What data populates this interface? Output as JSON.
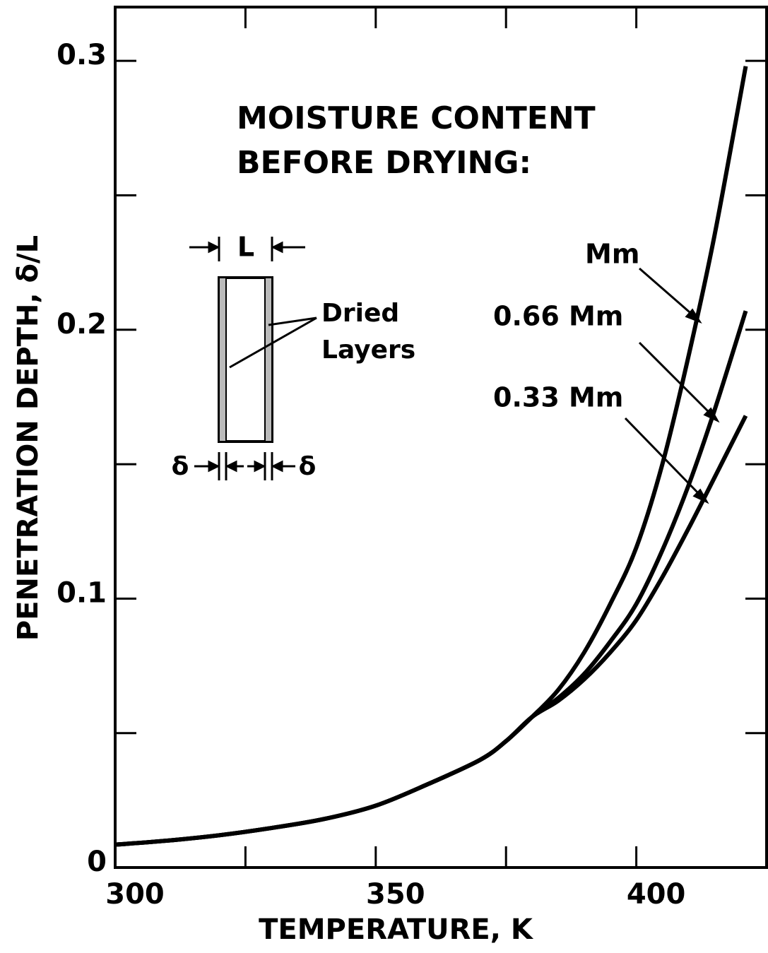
{
  "chart_data": {
    "type": "line",
    "xlabel": "TEMPERATURE, K",
    "ylabel": "PENETRATION DEPTH, δ/L",
    "annotations": {
      "heading": [
        "MOISTURE CONTENT",
        "BEFORE DRYING:"
      ],
      "inset": {
        "width_label": "L",
        "layer_label": [
          "Dried",
          "Layers"
        ],
        "thickness_label": "δ"
      }
    },
    "x": [
      300,
      310,
      320,
      330,
      340,
      350,
      360,
      370,
      375,
      380,
      385,
      390,
      395,
      400,
      405,
      410,
      415,
      421
    ],
    "series": [
      {
        "name": "Mm",
        "color": "#000000",
        "values": [
          0.0085,
          0.01,
          0.012,
          0.0147,
          0.018,
          0.023,
          0.031,
          0.04,
          0.047,
          0.056,
          0.066,
          0.08,
          0.098,
          0.119,
          0.15,
          0.19,
          0.235,
          0.298
        ]
      },
      {
        "name": "0.66 Mm",
        "color": "#000000",
        "values": [
          0.0085,
          0.01,
          0.012,
          0.0147,
          0.018,
          0.023,
          0.031,
          0.04,
          0.047,
          0.056,
          0.063,
          0.072,
          0.084,
          0.098,
          0.118,
          0.142,
          0.17,
          0.207
        ]
      },
      {
        "name": "0.33 Mm",
        "color": "#000000",
        "values": [
          0.0085,
          0.01,
          0.012,
          0.0147,
          0.018,
          0.023,
          0.031,
          0.04,
          0.047,
          0.056,
          0.062,
          0.07,
          0.08,
          0.092,
          0.108,
          0.126,
          0.145,
          0.168
        ]
      }
    ],
    "xlim": [
      300,
      425
    ],
    "xticks": [
      300,
      350,
      400
    ],
    "xminor": [
      325,
      375
    ],
    "ylim": [
      0,
      0.32
    ],
    "yticks": [
      0,
      0.1,
      0.2,
      0.3
    ],
    "yminor": [
      0.05,
      0.15,
      0.25
    ],
    "grid": false
  }
}
